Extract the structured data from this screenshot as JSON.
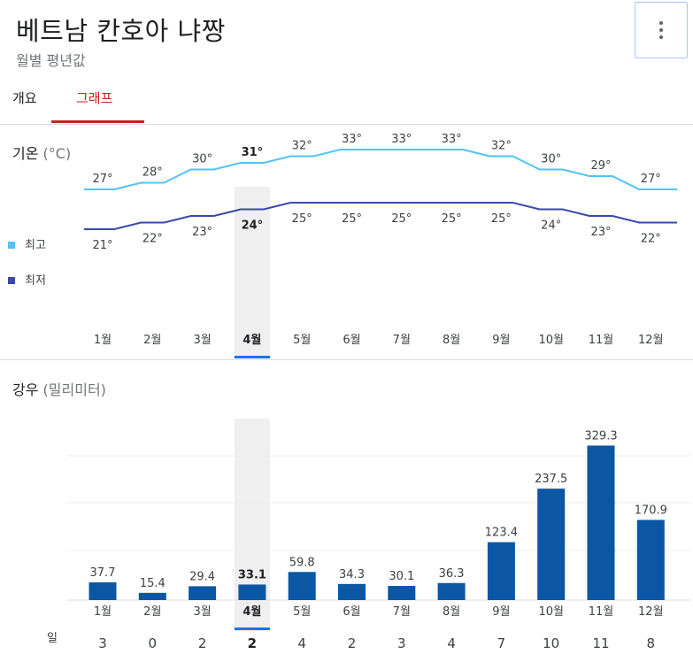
{
  "header": {
    "title": "베트남 칸호아 냐짱",
    "subtitle": "월별 평년값"
  },
  "tabs": [
    {
      "label": "개요"
    },
    {
      "label": "그래프"
    }
  ],
  "colors": {
    "high": "#4fc3f7",
    "low": "#3949ab",
    "bar": "#0b57a3",
    "highlight": "#efefef",
    "accent": "#1a73e8",
    "tab_active": "#c5221f"
  },
  "temperature": {
    "title": "기온",
    "unit": "(°C)",
    "legend": {
      "high": "최고",
      "low": "최저"
    },
    "value_labels_high": [
      "27°",
      "28°",
      "30°",
      "31°",
      "32°",
      "33°",
      "33°",
      "33°",
      "32°",
      "30°",
      "29°",
      "27°"
    ],
    "value_labels_low": [
      "21°",
      "22°",
      "23°",
      "24°",
      "25°",
      "25°",
      "25°",
      "25°",
      "25°",
      "24°",
      "23°",
      "22°"
    ]
  },
  "rainfall": {
    "title": "강우",
    "unit": "(밀리미터)",
    "value_labels": [
      "37.7",
      "15.4",
      "29.4",
      "33.1",
      "59.8",
      "34.3",
      "30.1",
      "36.3",
      "123.4",
      "237.5",
      "329.3",
      "170.9"
    ],
    "days_label": "일",
    "days": [
      "3",
      "0",
      "2",
      "2",
      "4",
      "2",
      "3",
      "4",
      "7",
      "10",
      "11",
      "8"
    ]
  },
  "months": [
    "1월",
    "2월",
    "3월",
    "4월",
    "5월",
    "6월",
    "7월",
    "8월",
    "9월",
    "10월",
    "11월",
    "12월"
  ],
  "selected_month_index": 3,
  "chart_data": [
    {
      "type": "line",
      "title": "기온 (°C)",
      "x": [
        "1월",
        "2월",
        "3월",
        "4월",
        "5월",
        "6월",
        "7월",
        "8월",
        "9월",
        "10월",
        "11월",
        "12월"
      ],
      "series": [
        {
          "name": "최고",
          "values": [
            27,
            28,
            30,
            31,
            32,
            33,
            33,
            33,
            32,
            30,
            29,
            27
          ]
        },
        {
          "name": "최저",
          "values": [
            21,
            22,
            23,
            24,
            25,
            25,
            25,
            25,
            25,
            24,
            23,
            22
          ]
        }
      ],
      "legend": "left",
      "grid": false
    },
    {
      "type": "bar",
      "title": "강우 (밀리미터)",
      "categories": [
        "1월",
        "2월",
        "3월",
        "4월",
        "5월",
        "6월",
        "7월",
        "8월",
        "9월",
        "10월",
        "11월",
        "12월"
      ],
      "values": [
        37.7,
        15.4,
        29.4,
        33.1,
        59.8,
        34.3,
        30.1,
        36.3,
        123.4,
        237.5,
        329.3,
        170.9
      ],
      "days": [
        3,
        0,
        2,
        2,
        4,
        2,
        3,
        4,
        7,
        10,
        11,
        8
      ],
      "grid": true
    }
  ]
}
